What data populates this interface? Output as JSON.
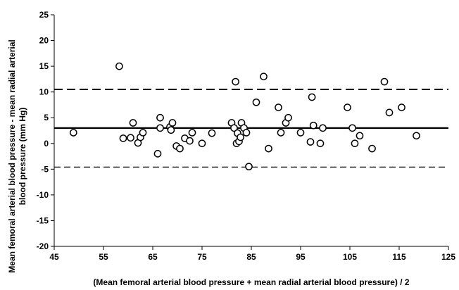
{
  "chart_data": {
    "type": "scatter",
    "title": "",
    "xlabel": "(Mean femoral arterial blood pressure + mean radial arterial blood pressure) / 2",
    "ylabel_lines": [
      "Mean femoral arterial blood pressure - mean radial arterial",
      "blood pressure (mm Hg)"
    ],
    "xlim": [
      45,
      125
    ],
    "ylim": [
      -20,
      25
    ],
    "xticks": [
      45,
      55,
      65,
      75,
      85,
      95,
      105,
      115,
      125
    ],
    "yticks": [
      -20,
      -15,
      -10,
      -5,
      0,
      5,
      10,
      15,
      20,
      25
    ],
    "grid": false,
    "reference_lines": [
      {
        "y": 3.0,
        "style": "solid"
      },
      {
        "y": 10.5,
        "style": "dashed"
      },
      {
        "y": -4.6,
        "style": "dashed-thin"
      }
    ],
    "points": [
      {
        "x": 48.9,
        "y": 2.1
      },
      {
        "x": 58.2,
        "y": 15.0
      },
      {
        "x": 59.0,
        "y": 1.0
      },
      {
        "x": 60.5,
        "y": 1.1
      },
      {
        "x": 61.0,
        "y": 4.0
      },
      {
        "x": 62.0,
        "y": 0.1
      },
      {
        "x": 62.5,
        "y": 1.2
      },
      {
        "x": 63.0,
        "y": 2.1
      },
      {
        "x": 66.0,
        "y": -2.0
      },
      {
        "x": 66.5,
        "y": 5.0
      },
      {
        "x": 66.5,
        "y": 3.0
      },
      {
        "x": 68.5,
        "y": 3.2
      },
      {
        "x": 68.7,
        "y": 2.6
      },
      {
        "x": 69.0,
        "y": 4.0
      },
      {
        "x": 69.8,
        "y": -0.5
      },
      {
        "x": 70.5,
        "y": -1.0
      },
      {
        "x": 71.5,
        "y": 1.0
      },
      {
        "x": 72.5,
        "y": 0.5
      },
      {
        "x": 73.0,
        "y": 2.1
      },
      {
        "x": 75.0,
        "y": 0.0
      },
      {
        "x": 77.0,
        "y": 2.0
      },
      {
        "x": 81.0,
        "y": 4.0
      },
      {
        "x": 81.5,
        "y": 3.0
      },
      {
        "x": 81.8,
        "y": 12.0
      },
      {
        "x": 82.0,
        "y": 0.0
      },
      {
        "x": 82.2,
        "y": 2.0
      },
      {
        "x": 82.5,
        "y": 0.4
      },
      {
        "x": 82.8,
        "y": 1.2
      },
      {
        "x": 83.0,
        "y": 4.0
      },
      {
        "x": 83.5,
        "y": 3.0
      },
      {
        "x": 84.0,
        "y": 2.1
      },
      {
        "x": 84.5,
        "y": -4.5
      },
      {
        "x": 86.0,
        "y": 8.0
      },
      {
        "x": 87.5,
        "y": 13.0
      },
      {
        "x": 88.5,
        "y": -1.0
      },
      {
        "x": 90.5,
        "y": 7.0
      },
      {
        "x": 91.0,
        "y": 2.1
      },
      {
        "x": 92.0,
        "y": 4.0
      },
      {
        "x": 92.5,
        "y": 5.0
      },
      {
        "x": 95.0,
        "y": 2.1
      },
      {
        "x": 97.0,
        "y": 0.3
      },
      {
        "x": 97.3,
        "y": 9.0
      },
      {
        "x": 97.6,
        "y": 3.5
      },
      {
        "x": 99.0,
        "y": 0.0
      },
      {
        "x": 99.5,
        "y": 3.0
      },
      {
        "x": 104.5,
        "y": 7.0
      },
      {
        "x": 105.5,
        "y": 3.0
      },
      {
        "x": 106.0,
        "y": 0.0
      },
      {
        "x": 107.0,
        "y": 1.5
      },
      {
        "x": 109.5,
        "y": -1.0
      },
      {
        "x": 112.0,
        "y": 12.0
      },
      {
        "x": 113.0,
        "y": 6.0
      },
      {
        "x": 115.5,
        "y": 7.0
      },
      {
        "x": 118.5,
        "y": 1.5
      }
    ]
  }
}
